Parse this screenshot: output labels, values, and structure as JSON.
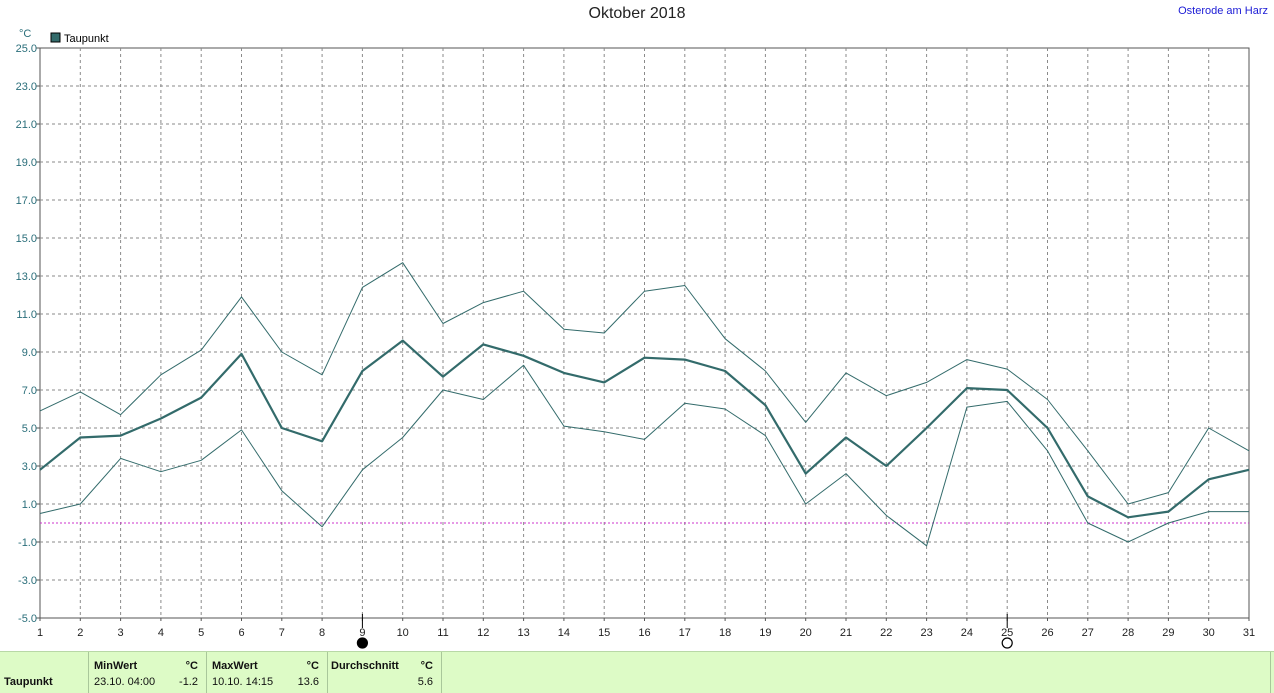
{
  "title": "Oktober 2018",
  "location": "Osterode am Harz",
  "unit_label": "°C",
  "legend_label": "Taupunkt",
  "colors": {
    "series": "#336b6b",
    "grid": "#8a8a8a",
    "zero": "#cc33cc",
    "axis_text": "#2a6e7a",
    "footer_bg": "#ddfbc6"
  },
  "moon_markers": [
    {
      "day": 9,
      "icon": "new-moon-icon"
    },
    {
      "day": 25,
      "icon": "full-moon-icon"
    }
  ],
  "chart_data": {
    "type": "line",
    "x": [
      1,
      2,
      3,
      4,
      5,
      6,
      7,
      8,
      9,
      10,
      11,
      12,
      13,
      14,
      15,
      16,
      17,
      18,
      19,
      20,
      21,
      22,
      23,
      24,
      25,
      26,
      27,
      28,
      29,
      30,
      31
    ],
    "ylim": [
      -5.0,
      25.0
    ],
    "yticks": [
      "25.0",
      "23.0",
      "21.0",
      "19.0",
      "17.0",
      "15.0",
      "13.0",
      "11.0",
      "9.0",
      "7.0",
      "5.0",
      "3.0",
      "1.0",
      "-1.0",
      "-3.0",
      "-5.0"
    ],
    "grid": true,
    "legend": "top-left",
    "series": [
      {
        "name": "Taupunkt",
        "role": "mean",
        "values": [
          2.8,
          4.5,
          4.6,
          5.5,
          6.6,
          8.9,
          5.0,
          4.3,
          8.0,
          9.6,
          7.7,
          9.4,
          8.8,
          7.9,
          7.4,
          8.7,
          8.6,
          8.0,
          6.2,
          2.6,
          4.5,
          3.0,
          5.0,
          7.1,
          7.0,
          5.0,
          1.4,
          0.3,
          0.6,
          2.3,
          2.8
        ]
      },
      {
        "role": "max",
        "values": [
          5.9,
          6.9,
          5.7,
          7.8,
          9.1,
          11.9,
          9.0,
          7.8,
          12.4,
          13.7,
          10.5,
          11.6,
          12.2,
          10.2,
          10.0,
          12.2,
          12.5,
          9.7,
          8.0,
          5.3,
          7.9,
          6.7,
          7.4,
          8.6,
          8.1,
          6.5,
          3.8,
          1.0,
          1.6,
          5.0,
          3.8
        ]
      },
      {
        "role": "min",
        "values": [
          0.5,
          1.0,
          3.4,
          2.7,
          3.3,
          4.9,
          1.7,
          -0.2,
          2.8,
          4.5,
          7.0,
          6.5,
          8.3,
          5.1,
          4.8,
          4.4,
          6.3,
          6.0,
          4.6,
          1.0,
          2.6,
          0.4,
          -1.2,
          6.1,
          6.4,
          3.8,
          0.0,
          -1.0,
          0.0,
          0.6,
          0.6
        ]
      }
    ]
  },
  "footer": {
    "row_label": "Taupunkt",
    "min": {
      "header": "MinWert",
      "unit": "°C",
      "datetime": "23.10.  04:00",
      "value": "-1.2"
    },
    "max": {
      "header": "MaxWert",
      "unit": "°C",
      "datetime": "10.10.  14:15",
      "value": "13.6"
    },
    "avg": {
      "header": "Durchschnitt",
      "unit": "°C",
      "value": "5.6"
    }
  }
}
